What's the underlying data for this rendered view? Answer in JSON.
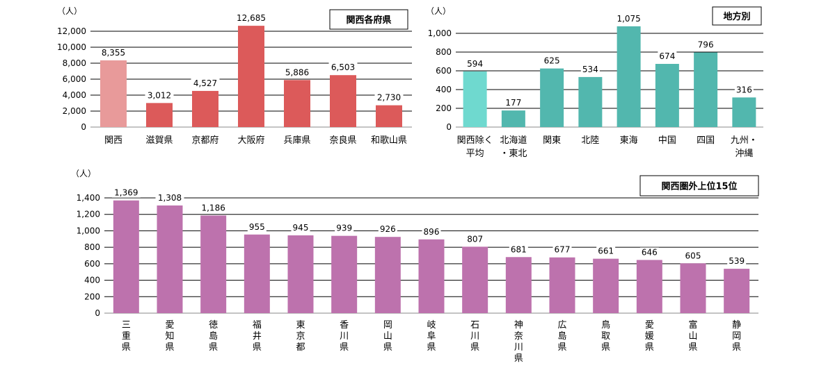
{
  "chart_data": [
    {
      "type": "bar",
      "title": "関西各府県",
      "unit": "（人）",
      "ylim": [
        0,
        12000
      ],
      "yticks": [
        "0",
        "2,000",
        "4,000",
        "6,000",
        "8,000",
        "10,000",
        "12,000"
      ],
      "categories": [
        "関西",
        "滋賀県",
        "京都府",
        "大阪府",
        "兵庫県",
        "奈良県",
        "和歌山県"
      ],
      "values": [
        8355,
        3012,
        4527,
        12685,
        5886,
        6503,
        2730
      ],
      "value_labels": [
        "8,355",
        "3,012",
        "4,527",
        "12,685",
        "5,886",
        "6,503",
        "2,730"
      ],
      "colors": [
        "#e89a9a",
        "#dc5a5a",
        "#dc5a5a",
        "#dc5a5a",
        "#dc5a5a",
        "#dc5a5a",
        "#dc5a5a"
      ],
      "grid": true
    },
    {
      "type": "bar",
      "title": "地方別",
      "unit": "（人）",
      "ylim": [
        0,
        1000
      ],
      "yticks": [
        "0",
        "200",
        "400",
        "600",
        "800",
        "1,000"
      ],
      "categories": [
        [
          "関西除く",
          "平均"
        ],
        [
          "北海道",
          "・東北"
        ],
        [
          "関東"
        ],
        [
          "北陸"
        ],
        [
          "東海"
        ],
        [
          "中国"
        ],
        [
          "四国"
        ],
        [
          "九州・",
          "沖縄"
        ]
      ],
      "values": [
        594,
        177,
        625,
        534,
        1075,
        674,
        796,
        316
      ],
      "value_labels": [
        "594",
        "177",
        "625",
        "534",
        "1,075",
        "674",
        "796",
        "316"
      ],
      "colors": [
        "#6fd9cf",
        "#52b7ae",
        "#52b7ae",
        "#52b7ae",
        "#52b7ae",
        "#52b7ae",
        "#52b7ae",
        "#52b7ae"
      ],
      "grid": true
    },
    {
      "type": "bar",
      "title": "関西圏外上位15位",
      "unit": "（人）",
      "ylim": [
        0,
        1400
      ],
      "yticks": [
        "0",
        "200",
        "400",
        "600",
        "800",
        "1,000",
        "1,200",
        "1,400"
      ],
      "categories": [
        [
          "三",
          "重",
          "県"
        ],
        [
          "愛",
          "知",
          "県"
        ],
        [
          "徳",
          "島",
          "県"
        ],
        [
          "福",
          "井",
          "県"
        ],
        [
          "東",
          "京",
          "都"
        ],
        [
          "香",
          "川",
          "県"
        ],
        [
          "岡",
          "山",
          "県"
        ],
        [
          "岐",
          "阜",
          "県"
        ],
        [
          "石",
          "川",
          "県"
        ],
        [
          "神",
          "奈",
          "川",
          "県"
        ],
        [
          "広",
          "島",
          "県"
        ],
        [
          "鳥",
          "取",
          "県"
        ],
        [
          "愛",
          "媛",
          "県"
        ],
        [
          "富",
          "山",
          "県"
        ],
        [
          "静",
          "岡",
          "県"
        ]
      ],
      "values": [
        1369,
        1308,
        1186,
        955,
        945,
        939,
        926,
        896,
        807,
        681,
        677,
        661,
        646,
        605,
        539
      ],
      "value_labels": [
        "1,369",
        "1,308",
        "1,186",
        "955",
        "945",
        "939",
        "926",
        "896",
        "807",
        "681",
        "677",
        "661",
        "646",
        "605",
        "539"
      ],
      "colors": [
        "#bd72ad"
      ],
      "grid": true
    }
  ]
}
